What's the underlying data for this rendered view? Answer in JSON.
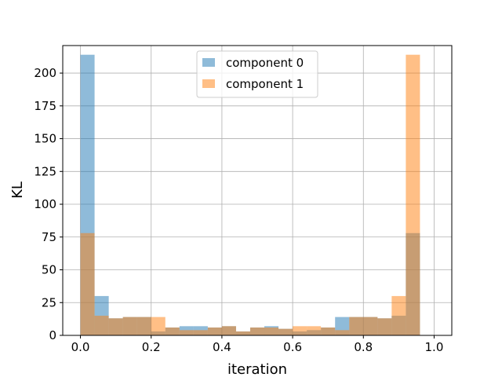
{
  "chart_data": {
    "type": "bar",
    "xlabel": "iteration",
    "ylabel": "KL",
    "xlim": [
      -0.05,
      1.05
    ],
    "ylim": [
      0,
      221
    ],
    "xticks": [
      0.0,
      0.2,
      0.4,
      0.6,
      0.8,
      1.0
    ],
    "xtick_labels": [
      "0.0",
      "0.2",
      "0.4",
      "0.6",
      "0.8",
      "1.0"
    ],
    "yticks": [
      0,
      25,
      50,
      75,
      100,
      125,
      150,
      175,
      200
    ],
    "ytick_labels": [
      "0",
      "25",
      "50",
      "75",
      "100",
      "125",
      "150",
      "175",
      "200"
    ],
    "grid": true,
    "legend_position": "top-center",
    "bin_edges": [
      0.0,
      0.04,
      0.08,
      0.12,
      0.16,
      0.2,
      0.24,
      0.28,
      0.32,
      0.36,
      0.4,
      0.44,
      0.48,
      0.52,
      0.56,
      0.6,
      0.64,
      0.68,
      0.72,
      0.76,
      0.8,
      0.84,
      0.88,
      0.92,
      0.96,
      1.0
    ],
    "series": [
      {
        "name": "component 0",
        "color": "#1f77b4",
        "opacity": 0.5,
        "values": [
          214,
          30,
          13,
          14,
          14,
          3,
          6,
          7,
          7,
          6,
          7,
          3,
          6,
          7,
          5,
          3,
          4,
          6,
          14,
          14,
          14,
          13,
          15,
          78,
          0
        ]
      },
      {
        "name": "component 1",
        "color": "#ff7f0e",
        "opacity": 0.5,
        "values": [
          78,
          15,
          13,
          14,
          14,
          14,
          6,
          4,
          4,
          6,
          7,
          3,
          6,
          6,
          5,
          7,
          7,
          6,
          4,
          14,
          14,
          13,
          30,
          214,
          0
        ]
      }
    ]
  }
}
